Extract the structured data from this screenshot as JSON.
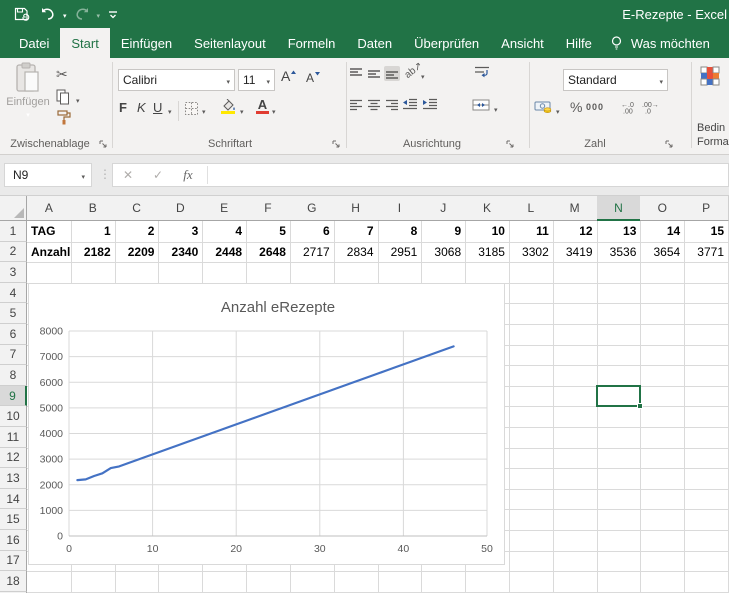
{
  "window": {
    "title": "E-Rezepte  -  Excel"
  },
  "quick_access": {
    "icons": [
      "save-icon",
      "undo-icon",
      "redo-icon",
      "customize-quick-access-icon"
    ]
  },
  "tabs": [
    {
      "label": "Datei",
      "active": false
    },
    {
      "label": "Start",
      "active": true
    },
    {
      "label": "Einfügen",
      "active": false
    },
    {
      "label": "Seitenlayout",
      "active": false
    },
    {
      "label": "Formeln",
      "active": false
    },
    {
      "label": "Daten",
      "active": false
    },
    {
      "label": "Überprüfen",
      "active": false
    },
    {
      "label": "Ansicht",
      "active": false
    },
    {
      "label": "Hilfe",
      "active": false
    }
  ],
  "tell_me": {
    "label": "Was möchten"
  },
  "ribbon": {
    "clipboard": {
      "group_label": "Zwischenablage",
      "paste_label": "Einfügen"
    },
    "font": {
      "group_label": "Schriftart",
      "font_name": "Calibri",
      "font_size": "11",
      "bold_label": "F",
      "italic_label": "K",
      "underline_label": "U"
    },
    "alignment": {
      "group_label": "Ausrichtung"
    },
    "number": {
      "group_label": "Zahl",
      "format_value": "Standard",
      "percent_label": "%",
      "thousands_label": "000"
    },
    "styles": {
      "label_line1": "Bedin",
      "label_line2": "Formatie"
    }
  },
  "formula_bar": {
    "name_box": "N9",
    "fx_label": "fx",
    "formula_value": ""
  },
  "sheet": {
    "columns": [
      "A",
      "B",
      "C",
      "D",
      "E",
      "F",
      "G",
      "H",
      "I",
      "J",
      "K",
      "L",
      "M",
      "N",
      "O",
      "P"
    ],
    "visible_rows": 19,
    "selection": {
      "cell": "N9",
      "column": "N",
      "row": 9
    },
    "rows": [
      {
        "row": 1,
        "label": "TAG",
        "label_bold": true,
        "values_bold_count": 15,
        "values": [
          "1",
          "2",
          "3",
          "4",
          "5",
          "6",
          "7",
          "8",
          "9",
          "10",
          "11",
          "12",
          "13",
          "14",
          "15"
        ]
      },
      {
        "row": 2,
        "label": "Anzahl",
        "label_bold": true,
        "values_bold_count": 5,
        "values": [
          "2182",
          "2209",
          "2340",
          "2448",
          "2648",
          "2717",
          "2834",
          "2951",
          "3068",
          "3185",
          "3302",
          "3419",
          "3536",
          "3654",
          "3771"
        ]
      }
    ]
  },
  "chart_data": {
    "type": "line",
    "title": "Anzahl eRezepte",
    "xlabel": "",
    "ylabel": "",
    "xlim": [
      0,
      50
    ],
    "ylim": [
      0,
      8000
    ],
    "x_ticks": [
      0,
      10,
      20,
      30,
      40,
      50
    ],
    "y_ticks": [
      0,
      1000,
      2000,
      3000,
      4000,
      5000,
      6000,
      7000,
      8000
    ],
    "grid": true,
    "legend": "none",
    "series": [
      {
        "name": "Anzahl eRezepte",
        "color": "#4472C4",
        "x": [
          1,
          2,
          3,
          4,
          5,
          6,
          7,
          8,
          9,
          10,
          11,
          12,
          13,
          14,
          15,
          16,
          17,
          18,
          19,
          20,
          21,
          22,
          23,
          24,
          25,
          26,
          27,
          28,
          29,
          30,
          31,
          32,
          33,
          34,
          35,
          36,
          37,
          38,
          39,
          40,
          41,
          42,
          43,
          44,
          45,
          46
        ],
        "values": [
          2182,
          2209,
          2340,
          2448,
          2648,
          2717,
          2834,
          2951,
          3068,
          3185,
          3302,
          3419,
          3536,
          3654,
          3771,
          3888,
          4005,
          4122,
          4239,
          4356,
          4473,
          4590,
          4707,
          4824,
          4941,
          5058,
          5175,
          5292,
          5409,
          5526,
          5643,
          5760,
          5877,
          5994,
          6111,
          6228,
          6345,
          6462,
          6579,
          6696,
          6813,
          6930,
          7047,
          7164,
          7281,
          7398
        ]
      }
    ]
  },
  "colors": {
    "excel_green": "#217346",
    "chart_line": "#4472C4",
    "chart_text": "#595959",
    "gridline": "#DADADA",
    "selection_border": "#217346"
  }
}
